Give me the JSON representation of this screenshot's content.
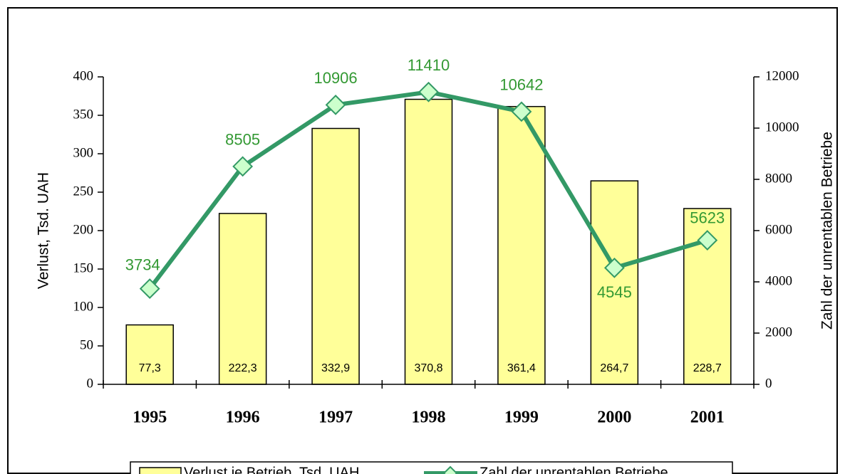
{
  "chart_data": {
    "type": "bar-line",
    "categories": [
      "1995",
      "1996",
      "1997",
      "1998",
      "1999",
      "2000",
      "2001"
    ],
    "series": [
      {
        "name": "Verlust je Betrieb, Tsd. UAH",
        "type": "bar",
        "color": "#ffff99",
        "values": [
          77.3,
          222.3,
          332.9,
          370.8,
          361.4,
          264.7,
          228.7
        ],
        "value_labels": [
          "77,3",
          "222,3",
          "332,9",
          "370,8",
          "361,4",
          "264,7",
          "228,7"
        ]
      },
      {
        "name": "Zahl der unrentablen Betriebe",
        "type": "line",
        "axis": "y2",
        "color": "#339966",
        "values": [
          3734,
          8505,
          10906,
          11410,
          10642,
          4545,
          5623
        ]
      }
    ],
    "ylabel": "Verlust, Tsd. UAH",
    "y2label": "Zahl der unrentablen Betriebe",
    "ylim": [
      0,
      400
    ],
    "yticks": [
      0,
      50,
      100,
      150,
      200,
      250,
      300,
      350,
      400
    ],
    "y2lim": [
      0,
      12000
    ],
    "y2ticks": [
      0,
      2000,
      4000,
      6000,
      8000,
      10000,
      12000
    ],
    "legend": "bottom"
  }
}
